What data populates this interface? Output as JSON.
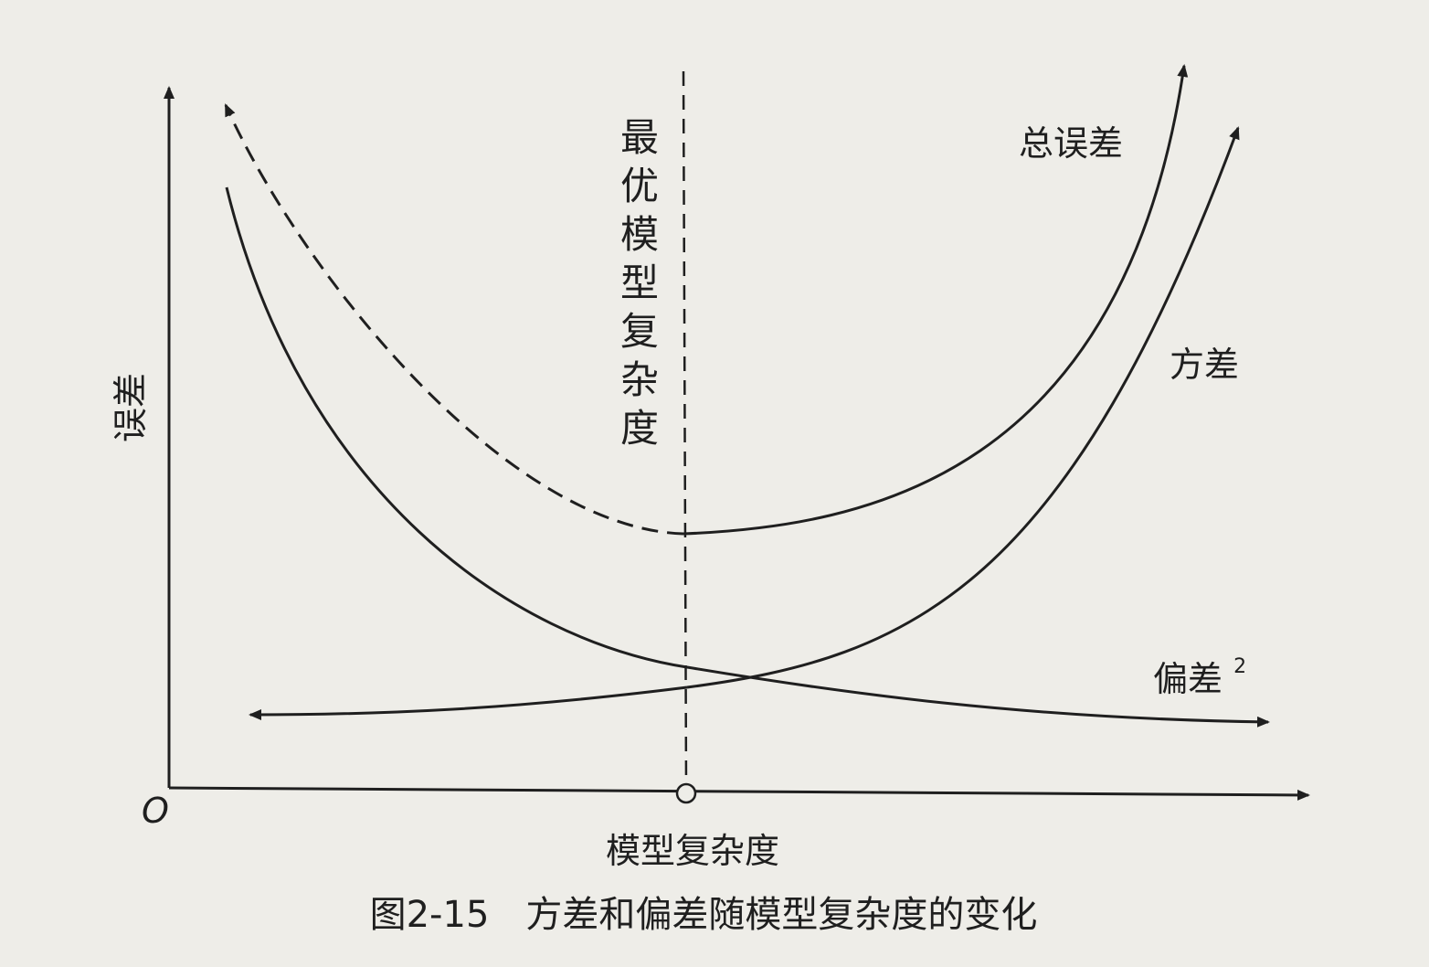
{
  "diagram": {
    "y_axis_label": "误差",
    "x_axis_label": "模型复杂度",
    "origin_label": "O",
    "optimal_label": "最优模型复杂度",
    "curves": {
      "total_error": "总误差",
      "variance": "方差",
      "bias_squared": "偏差",
      "bias_superscript": "2"
    },
    "caption": "图2-15　方差和偏差随模型复杂度的变化"
  }
}
